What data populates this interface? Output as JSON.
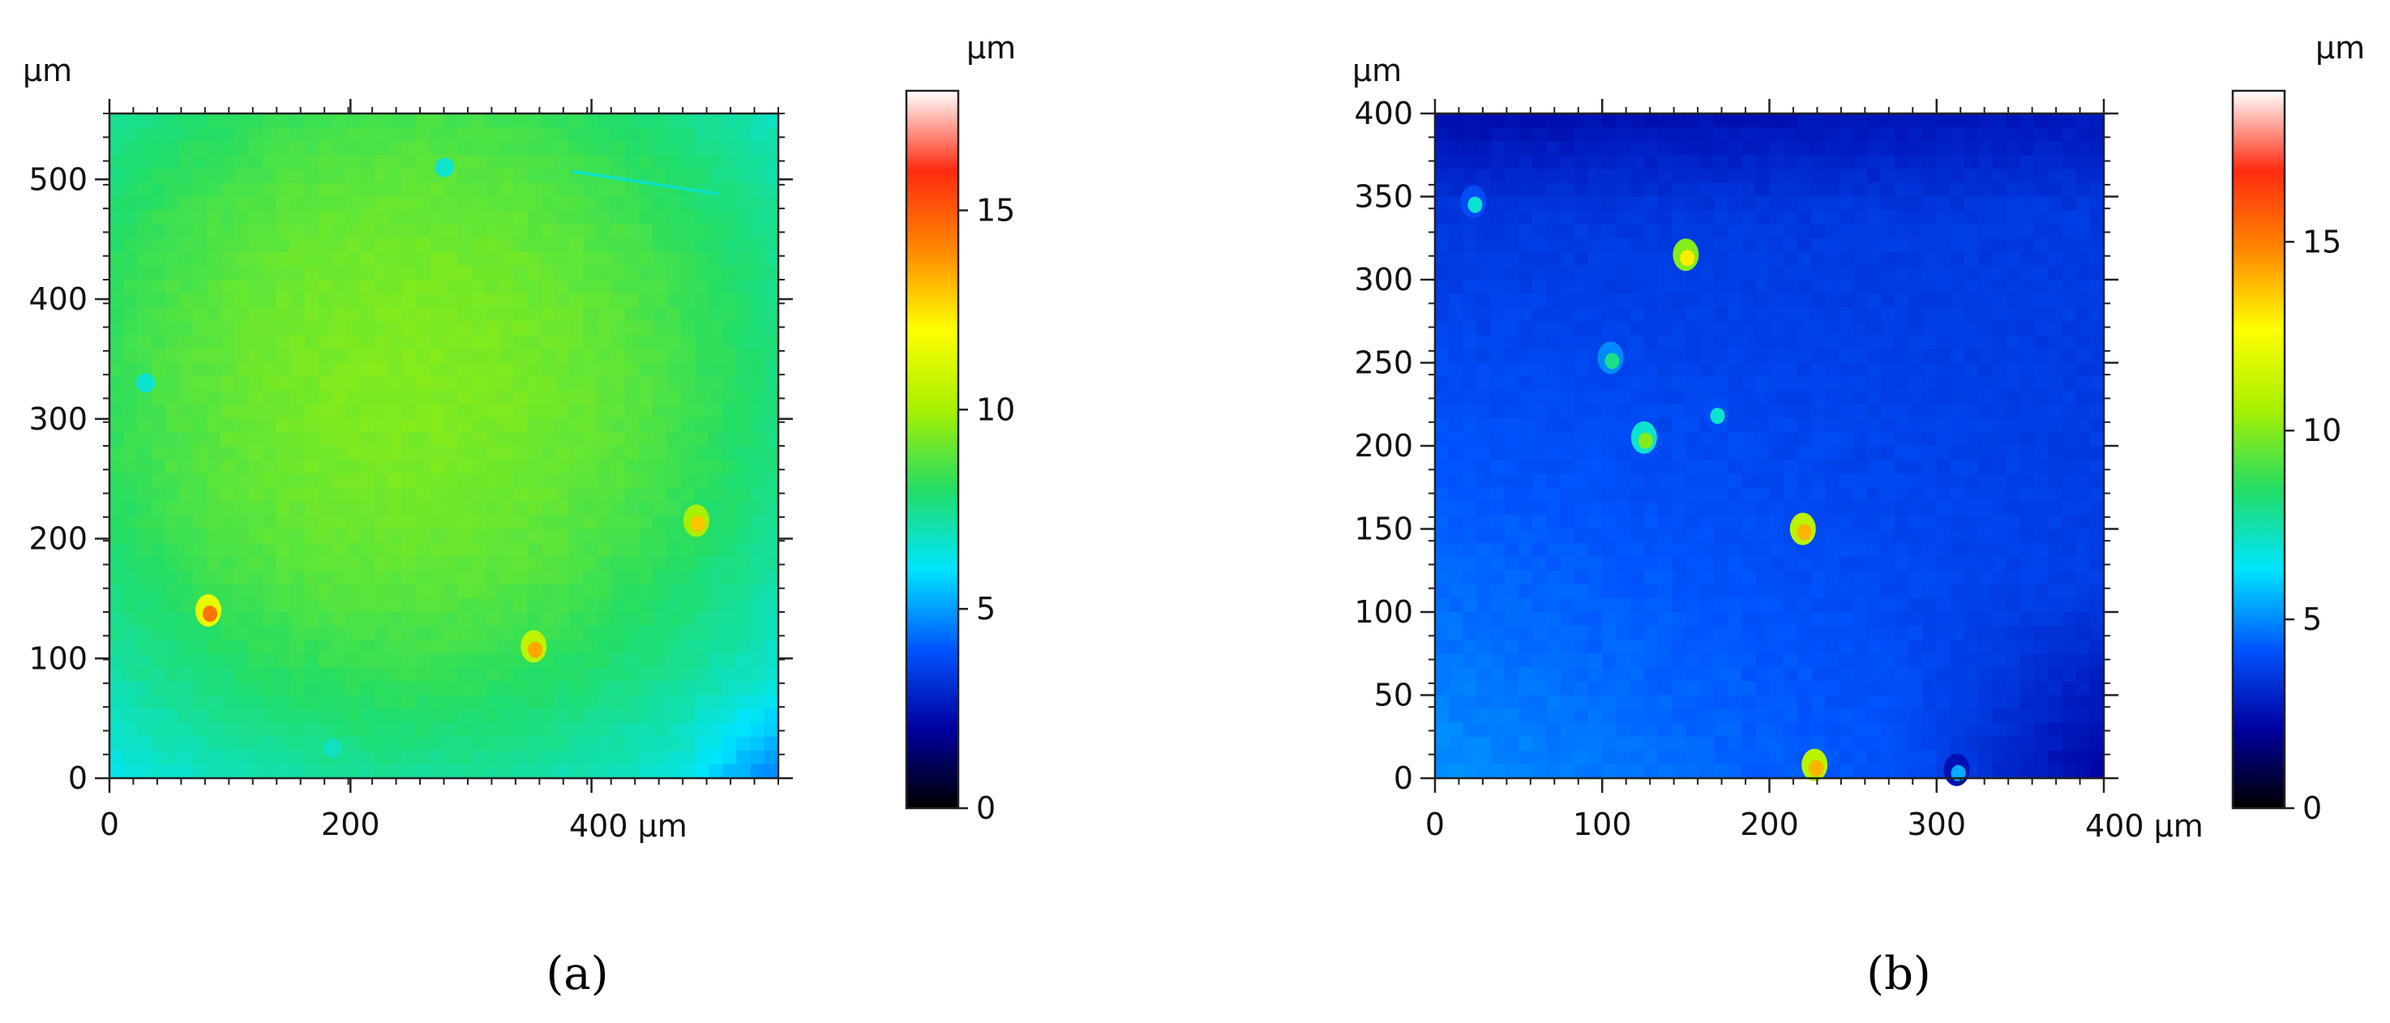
{
  "colors": {
    "colormap_stops": [
      "#000000",
      "#0000a0",
      "#0055ff",
      "#00e5ff",
      "#22dd66",
      "#a8f000",
      "#ffff00",
      "#ff8800",
      "#ff2a10",
      "#ffffff"
    ],
    "axis": "#222222"
  },
  "chart_data": [
    {
      "type": "heatmap",
      "panel_label": "(a)",
      "x_unit_label": "400 µm",
      "y_unit_label": "µm",
      "colorbar_unit_label": "µm",
      "xlim": [
        0,
        555
      ],
      "ylim": [
        0,
        555
      ],
      "x_ticks": [
        0,
        200,
        400
      ],
      "x_tick_labels": [
        "0",
        "200",
        ""
      ],
      "y_ticks": [
        0,
        100,
        200,
        300,
        400,
        500
      ],
      "y_tick_labels": [
        "0",
        "100",
        "200",
        "300",
        "400",
        "500"
      ],
      "color_range": [
        0,
        18
      ],
      "colorbar_ticks": [
        0,
        5,
        10,
        15
      ],
      "colorbar_tick_labels": [
        "0",
        "5",
        "10",
        "15"
      ],
      "background_level": 8.7,
      "surface_description": "fairly flat surface at about 7-9.5 µm, higher toward the center, slightly lower toward the corners",
      "features": [
        {
          "x": 352,
          "y": 110,
          "height": 13.5,
          "kind": "particle"
        },
        {
          "x": 82,
          "y": 140,
          "height": 14.5,
          "kind": "particle"
        },
        {
          "x": 487,
          "y": 215,
          "height": 13,
          "kind": "particle"
        },
        {
          "x": 445,
          "y": 504,
          "height": 6.8,
          "kind": "scratch"
        },
        {
          "x": 278,
          "y": 510,
          "height": 6.5,
          "kind": "pit"
        },
        {
          "x": 30,
          "y": 330,
          "height": 6.5,
          "kind": "pit"
        },
        {
          "x": 185,
          "y": 25,
          "height": 6.8,
          "kind": "pit"
        }
      ]
    },
    {
      "type": "heatmap",
      "panel_label": "(b)",
      "x_unit_label": "400 µm",
      "y_unit_label": "µm",
      "colorbar_unit_label": "µm",
      "xlim": [
        0,
        400
      ],
      "ylim": [
        0,
        400
      ],
      "x_ticks": [
        0,
        100,
        200,
        300,
        400
      ],
      "x_tick_labels": [
        "0",
        "100",
        "200",
        "300",
        ""
      ],
      "y_ticks": [
        0,
        50,
        100,
        150,
        200,
        250,
        300,
        350,
        400
      ],
      "y_tick_labels": [
        "0",
        "50",
        "100",
        "150",
        "200",
        "250",
        "300",
        "350",
        "400"
      ],
      "color_range": [
        0,
        19
      ],
      "colorbar_ticks": [
        0,
        5,
        10,
        15
      ],
      "colorbar_tick_labels": [
        "0",
        "5",
        "10",
        "15"
      ],
      "background_level": 4.2,
      "surface_description": "surface at about 2-5 µm, higher along the lower left, lowest near the top and the lower right corner",
      "features": [
        {
          "x": 150,
          "y": 315,
          "height": 13,
          "kind": "particle"
        },
        {
          "x": 220,
          "y": 150,
          "height": 14,
          "kind": "particle"
        },
        {
          "x": 125,
          "y": 205,
          "height": 10,
          "kind": "particle"
        },
        {
          "x": 23,
          "y": 347,
          "height": 7,
          "kind": "particle"
        },
        {
          "x": 227,
          "y": 8,
          "height": 14,
          "kind": "particle"
        },
        {
          "x": 105,
          "y": 253,
          "height": 8,
          "kind": "particle"
        },
        {
          "x": 312,
          "y": 5,
          "height": 5.5,
          "kind": "particle"
        },
        {
          "x": 168,
          "y": 220,
          "height": 7,
          "kind": "particle"
        }
      ]
    }
  ]
}
